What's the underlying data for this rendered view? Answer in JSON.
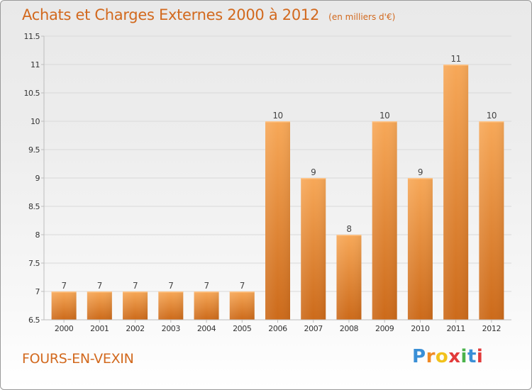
{
  "title": "Achats et Charges Externes 2000 à 2012",
  "unit_note": "(en milliers d'€)",
  "commune": "FOURS-EN-VEXIN",
  "brand": {
    "letters": [
      "P",
      "r",
      "o",
      "x",
      "i",
      "t",
      "i"
    ],
    "colors": [
      "#3a8fd6",
      "#f08a24",
      "#f2c21b",
      "#e23a3a",
      "#4bb34b",
      "#3a8fd6",
      "#e23a3a"
    ]
  },
  "colors": {
    "title": "#d2691e",
    "bar_top": "#f7a858",
    "bar_bottom": "#cc6a1a",
    "grid": "#d9d9d9",
    "axis": "#bdbdbd",
    "tick_text": "#333333",
    "label_text": "#444444"
  },
  "chart_data": {
    "type": "bar",
    "title": "Achats et Charges Externes 2000 à 2012",
    "subtitle": "(en milliers d'€)",
    "categories": [
      "2000",
      "2001",
      "2002",
      "2003",
      "2004",
      "2005",
      "2006",
      "2007",
      "2008",
      "2009",
      "2010",
      "2011",
      "2012"
    ],
    "values": [
      7,
      7,
      7,
      7,
      7,
      7,
      10,
      9,
      8,
      10,
      9,
      11,
      10
    ],
    "value_labels": [
      "7",
      "7",
      "7",
      "7",
      "7",
      "7",
      "10",
      "9",
      "8",
      "10",
      "9",
      "11",
      "10"
    ],
    "ylim": [
      6.5,
      11.5
    ],
    "yticks": [
      6.5,
      7,
      7.5,
      8,
      8.5,
      9,
      9.5,
      10,
      10.5,
      11,
      11.5
    ],
    "ytick_labels": [
      "6.5",
      "7",
      "7.5",
      "8",
      "8.5",
      "9",
      "9.5",
      "10",
      "10.5",
      "11",
      "11.5"
    ],
    "xlabel": "",
    "ylabel": "",
    "grid": true,
    "legend": "none"
  }
}
